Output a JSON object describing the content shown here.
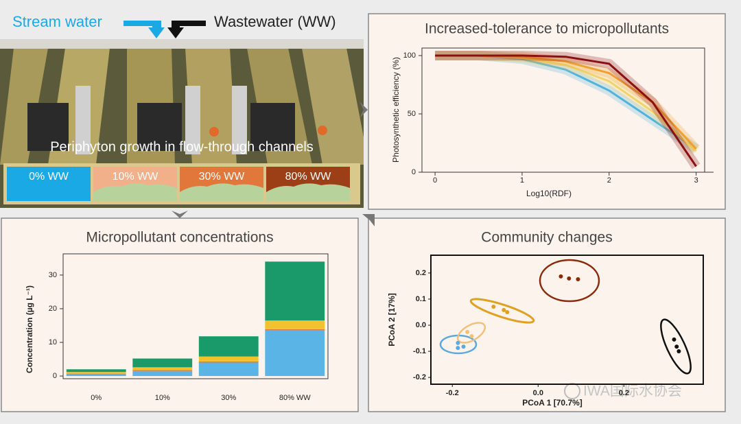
{
  "photo": {
    "stream_label": "Stream water",
    "wastewater_label": "Wastewater (WW)",
    "caption": "Periphyton growth in flow-through channels",
    "treatments": [
      "0% WW",
      "10% WW",
      "30% WW",
      "80% WW"
    ],
    "treatment_colors": [
      "#1ba9e6",
      "#f2b08a",
      "#e2773c",
      "#9c3e16"
    ]
  },
  "watermark": "IWA国际水协会",
  "chart_data": [
    {
      "type": "line",
      "title": "Increased-tolerance to micropollutants",
      "xlabel": "Log10(RDF)",
      "ylabel": "Photosynthetic efficiency (%)",
      "x": [
        0,
        0.5,
        1,
        1.5,
        2,
        2.5,
        3
      ],
      "series": [
        {
          "color": "#4fb3dc",
          "values": [
            100,
            100,
            97,
            88,
            70,
            45,
            20
          ]
        },
        {
          "color": "#f0d36a",
          "values": [
            100,
            100,
            98,
            92,
            78,
            52,
            18
          ]
        },
        {
          "color": "#f0a030",
          "values": [
            100,
            100,
            99,
            95,
            85,
            60,
            20
          ]
        },
        {
          "color": "#8b1010",
          "values": [
            100,
            100,
            100,
            99,
            93,
            60,
            5
          ]
        }
      ],
      "xlim": [
        -0.19,
        3.2
      ],
      "ylim": [
        0,
        110
      ],
      "xticks": [
        0,
        1,
        2,
        3
      ],
      "yticks": [
        0,
        50,
        100
      ]
    },
    {
      "type": "bar",
      "title": "Micropollutant concentrations",
      "ylabel": "Concentration (µg L⁻¹)",
      "categories": [
        "0%",
        "10%",
        "30%",
        "80% WW"
      ],
      "series": [
        {
          "color": "#5ab4e5",
          "values": [
            0.5,
            1.5,
            4,
            13.5
          ]
        },
        {
          "color": "#e07b39",
          "values": [
            0.2,
            0.3,
            0.3,
            0.4
          ]
        },
        {
          "color": "#f2c12e",
          "values": [
            0.5,
            0.8,
            1.5,
            2.6
          ]
        },
        {
          "color": "#1a9a6a",
          "values": [
            0.8,
            2.6,
            6,
            17.5
          ]
        }
      ],
      "ylim": [
        -0.8,
        36.3
      ],
      "yticks": [
        0,
        10,
        20,
        30
      ]
    },
    {
      "type": "scatter",
      "title": "Community changes",
      "xlabel": "PCoA 1  [70.7%]",
      "ylabel": "PCoA 2  [17%]",
      "series": [
        {
          "color": "#5aa9df",
          "x": [
            -0.187,
            -0.174,
            -0.187
          ],
          "values": [
            -0.068,
            -0.082,
            -0.087
          ]
        },
        {
          "color": "#f2c07a",
          "x": [
            -0.165,
            -0.155
          ],
          "values": [
            -0.026,
            -0.042
          ]
        },
        {
          "color": "#e0a020",
          "x": [
            -0.104,
            -0.08,
            -0.072
          ],
          "values": [
            0.071,
            0.058,
            0.05
          ]
        },
        {
          "color": "#8b2a0a",
          "x": [
            0.053,
            0.072,
            0.093
          ],
          "values": [
            0.187,
            0.179,
            0.176
          ]
        },
        {
          "color": "#111111",
          "x": [
            0.317,
            0.323,
            0.328
          ],
          "values": [
            -0.055,
            -0.082,
            -0.1
          ]
        }
      ],
      "xlim": [
        -0.25,
        0.385
      ],
      "ylim": [
        -0.226,
        0.268
      ],
      "xticks": [
        -0.2,
        {
          "value": 0,
          "label": "0.0"
        },
        0.2
      ],
      "yticks": [
        -0.2,
        -0.1,
        {
          "value": 0,
          "label": "0.0"
        },
        0.1,
        0.2
      ]
    }
  ]
}
